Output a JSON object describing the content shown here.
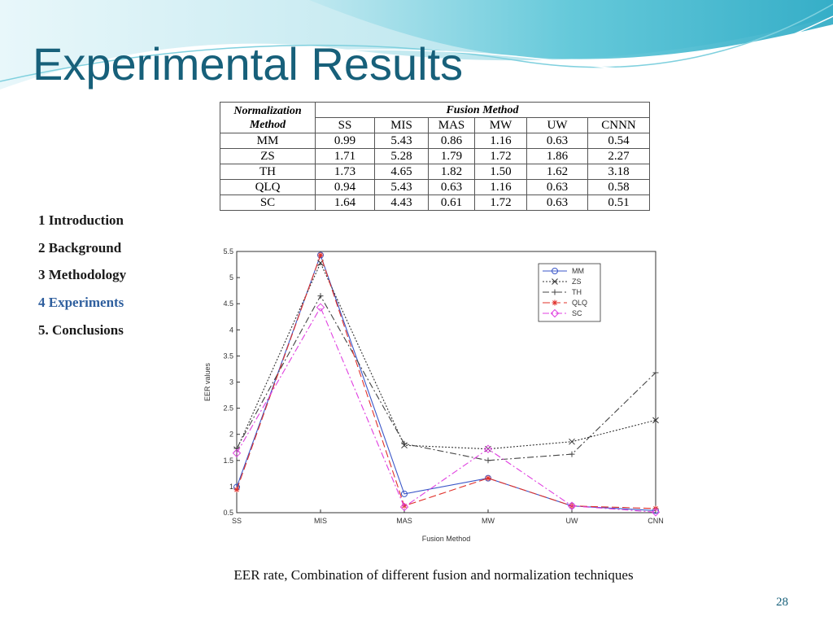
{
  "title": "Experimental Results",
  "nav": [
    "1 Introduction",
    "2 Background",
    "3 Methodology",
    "4 Experiments",
    "5. Conclusions"
  ],
  "table": {
    "corner": "Normalization Method",
    "group_header": "Fusion Method",
    "columns": [
      "SS",
      "MIS",
      "MAS",
      "MW",
      "UW",
      "CNNN"
    ],
    "rows": [
      [
        "MM",
        "0.99",
        "5.43",
        "0.86",
        "1.16",
        "0.63",
        "0.54"
      ],
      [
        "ZS",
        "1.71",
        "5.28",
        "1.79",
        "1.72",
        "1.86",
        "2.27"
      ],
      [
        "TH",
        "1.73",
        "4.65",
        "1.82",
        "1.50",
        "1.62",
        "3.18"
      ],
      [
        "QLQ",
        "0.94",
        "5.43",
        "0.63",
        "1.16",
        "0.63",
        "0.58"
      ],
      [
        "SC",
        "1.64",
        "4.43",
        "0.61",
        "1.72",
        "0.63",
        "0.51"
      ]
    ]
  },
  "chart_data": {
    "type": "line",
    "xlabel": "Fusion Method",
    "ylabel": "EER values",
    "categories": [
      "SS",
      "MIS",
      "MAS",
      "MW",
      "UW",
      "CNN"
    ],
    "ylim": [
      0.5,
      5.5
    ],
    "yticks": [
      0.5,
      1,
      1.5,
      2,
      2.5,
      3,
      3.5,
      4,
      4.5,
      5,
      5.5
    ],
    "legend": "upper right",
    "series": [
      {
        "name": "MM",
        "color": "#3a56c8",
        "dash": "solid",
        "marker": "circle",
        "values": [
          0.99,
          5.43,
          0.86,
          1.16,
          0.63,
          0.54
        ]
      },
      {
        "name": "ZS",
        "color": "#333333",
        "dash": "dotted",
        "marker": "x",
        "values": [
          1.71,
          5.28,
          1.79,
          1.72,
          1.86,
          2.27
        ]
      },
      {
        "name": "TH",
        "color": "#444444",
        "dash": "dashdot",
        "marker": "plus",
        "values": [
          1.73,
          4.65,
          1.82,
          1.5,
          1.62,
          3.18
        ]
      },
      {
        "name": "QLQ",
        "color": "#e0302a",
        "dash": "dashed",
        "marker": "star",
        "values": [
          0.94,
          5.43,
          0.63,
          1.16,
          0.63,
          0.58
        ]
      },
      {
        "name": "SC",
        "color": "#e040e0",
        "dash": "dashdot",
        "marker": "diamond",
        "values": [
          1.64,
          4.43,
          0.61,
          1.72,
          0.63,
          0.51
        ]
      }
    ]
  },
  "caption": "EER rate, Combination of different fusion and normalization techniques",
  "page_number": "28"
}
